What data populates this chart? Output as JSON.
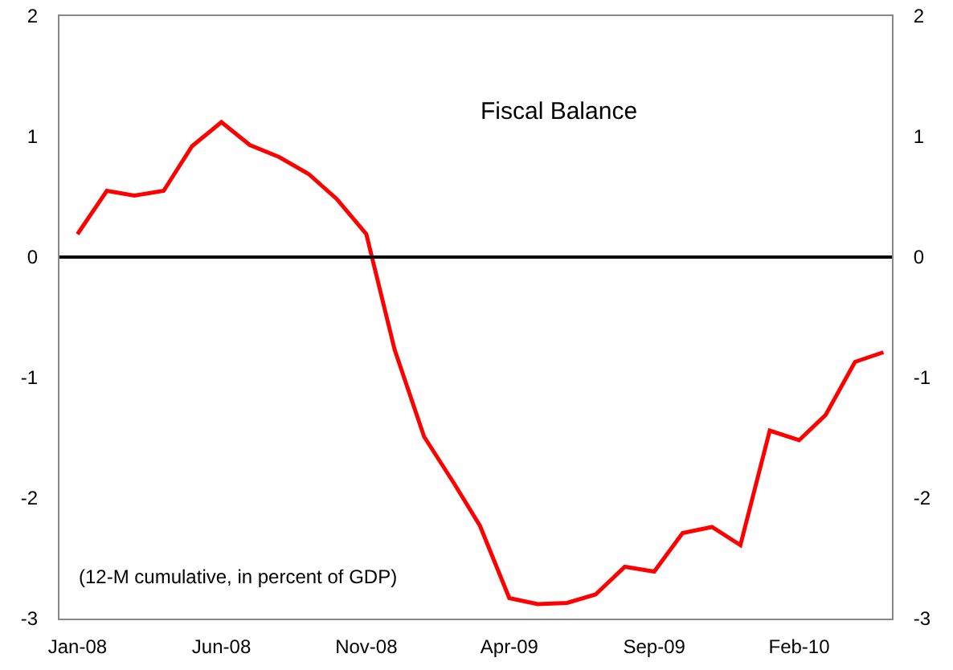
{
  "chart_data": {
    "type": "line",
    "title": "Fiscal Balance",
    "annotations": [
      "(12-M cumulative, in percent of GDP)"
    ],
    "x": [
      "2008-01",
      "2008-02",
      "2008-03",
      "2008-04",
      "2008-05",
      "2008-06",
      "2008-07",
      "2008-08",
      "2008-09",
      "2008-10",
      "2008-11",
      "2008-12",
      "2009-01",
      "2009-02",
      "2009-03",
      "2009-04",
      "2009-05",
      "2009-06",
      "2009-07",
      "2009-08",
      "2009-09",
      "2009-10",
      "2009-11",
      "2009-12",
      "2010-01",
      "2010-02",
      "2010-03",
      "2010-04",
      "2010-05"
    ],
    "series": [
      {
        "color": "#ff0000",
        "values": [
          0.19,
          0.55,
          0.51,
          0.55,
          0.92,
          1.12,
          0.93,
          0.83,
          0.69,
          0.48,
          0.19,
          -0.77,
          -1.49,
          -1.87,
          -2.23,
          -2.83,
          -2.88,
          -2.87,
          -2.8,
          -2.57,
          -2.61,
          -2.29,
          -2.24,
          -2.39,
          -1.44,
          -1.52,
          -1.31,
          -0.87,
          -0.79
        ]
      }
    ],
    "xlim": [
      "2007-12-13",
      "2010-05-10"
    ],
    "xticks": [
      {
        "value": "2008-01",
        "label": "Jan-08"
      },
      {
        "value": "2008-06",
        "label": "Jun-08"
      },
      {
        "value": "2008-11",
        "label": "Nov-08"
      },
      {
        "value": "2009-04",
        "label": "Apr-09"
      },
      {
        "value": "2009-09",
        "label": "Sep-09"
      },
      {
        "value": "2010-02",
        "label": "Feb-10"
      }
    ],
    "ylim": [
      -3,
      2
    ],
    "yticks": [
      -3,
      -2,
      -1,
      0,
      1,
      2
    ],
    "y2lim": [
      -3,
      2
    ],
    "y2ticks": [
      -3,
      -2,
      -1,
      0,
      1,
      2
    ],
    "ref_lines": [
      {
        "axis": "y",
        "value": 0,
        "color": "#000000"
      }
    ],
    "grid": false,
    "marker": "none",
    "line_style": "solid"
  }
}
